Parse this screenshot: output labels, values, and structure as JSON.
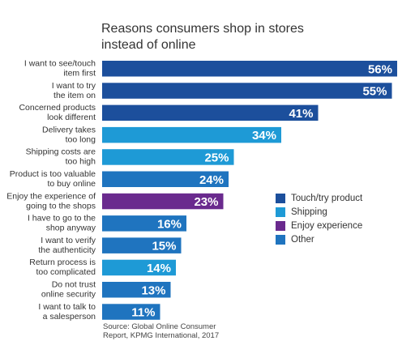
{
  "chart_data": {
    "type": "bar",
    "orientation": "horizontal",
    "title": "Reasons consumers shop in stores instead of online",
    "categories": [
      "I want to see/touch item first",
      "I want to try the item on",
      "Concerned products look different",
      "Delivery takes too long",
      "Shipping costs are too high",
      "Product is too valuable to buy online",
      "Enjoy the experience of going to the shops",
      "I have to go to the shop anyway",
      "I want to verify the authenticity",
      "Return process is too complicated",
      "Do not trust online security",
      "I want to talk to a salesperson"
    ],
    "category_lines": [
      [
        "I want to see/touch",
        "item first"
      ],
      [
        "I want to try",
        "the item on"
      ],
      [
        "Concerned products",
        "look different"
      ],
      [
        "Delivery takes",
        "too long"
      ],
      [
        "Shipping costs are",
        "too high"
      ],
      [
        "Product is too valuable",
        "to buy online"
      ],
      [
        "Enjoy the experience of",
        "going to the shops"
      ],
      [
        "I have to go to the",
        "shop anyway"
      ],
      [
        "I want to verify",
        "the authenticity"
      ],
      [
        "Return process is",
        "too complicated"
      ],
      [
        "Do not trust",
        "online security"
      ],
      [
        "I want to talk to",
        "a salesperson"
      ]
    ],
    "values": [
      56,
      55,
      41,
      34,
      25,
      24,
      23,
      16,
      15,
      14,
      13,
      11
    ],
    "value_labels": [
      "56%",
      "55%",
      "41%",
      "34%",
      "25%",
      "24%",
      "23%",
      "16%",
      "15%",
      "14%",
      "13%",
      "11%"
    ],
    "groups": [
      "touch",
      "touch",
      "touch",
      "shipping",
      "shipping",
      "other",
      "enjoy",
      "other",
      "other",
      "shipping",
      "other",
      "other"
    ],
    "legend": [
      {
        "key": "touch",
        "label": "Touch/try product",
        "color": "#1c4f9c"
      },
      {
        "key": "shipping",
        "label": "Shipping",
        "color": "#1e9ad6"
      },
      {
        "key": "enjoy",
        "label": "Enjoy experience",
        "color": "#6a2a8e"
      },
      {
        "key": "other",
        "label": "Other",
        "color": "#1f74bf"
      }
    ],
    "xlim": [
      0,
      56
    ],
    "grid": false,
    "legend_position": "right"
  },
  "source": {
    "line1": "Source: Global Online Consumer",
    "line2": "Report, KPMG International, 2017"
  }
}
